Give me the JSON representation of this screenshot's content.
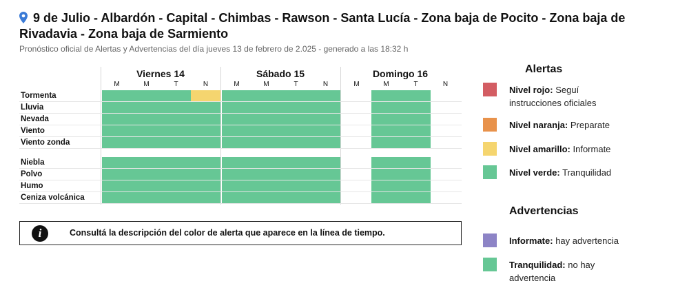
{
  "header": {
    "title": "9 de Julio - Albardón - Capital - Chimbas - Rawson - Santa Lucía - Zona baja de Pocito - Zona baja de Rivadavia - Zona baja de Sarmiento",
    "subtitle": "Pronóstico oficial de Alertas y Advertencias del día jueves 13 de febrero de 2.025 - generado a las 18:32 h"
  },
  "colors": {
    "green": "#66c795",
    "yellow": "#f5d56f",
    "red": "#d35d63",
    "orange": "#e8924b",
    "purple": "#8d84c6"
  },
  "days": [
    {
      "label": "Viernes 14",
      "slots": [
        "M",
        "M",
        "T",
        "N"
      ]
    },
    {
      "label": "Sábado 15",
      "slots": [
        "M",
        "M",
        "T",
        "N"
      ]
    },
    {
      "label": "Domingo 16",
      "slots": [
        "M",
        "M",
        "T",
        "N"
      ]
    }
  ],
  "rows": [
    {
      "label": "Tormenta",
      "cells": [
        "green",
        "green",
        "green",
        "yellow",
        "green",
        "green",
        "green",
        "green",
        "none",
        "green",
        "green",
        "none"
      ]
    },
    {
      "label": "Lluvia",
      "cells": [
        "green",
        "green",
        "green",
        "green",
        "green",
        "green",
        "green",
        "green",
        "none",
        "green",
        "green",
        "none"
      ]
    },
    {
      "label": "Nevada",
      "cells": [
        "green",
        "green",
        "green",
        "green",
        "green",
        "green",
        "green",
        "green",
        "none",
        "green",
        "green",
        "none"
      ]
    },
    {
      "label": "Viento",
      "cells": [
        "green",
        "green",
        "green",
        "green",
        "green",
        "green",
        "green",
        "green",
        "none",
        "green",
        "green",
        "none"
      ]
    },
    {
      "label": "Viento zonda",
      "cells": [
        "green",
        "green",
        "green",
        "green",
        "green",
        "green",
        "green",
        "green",
        "none",
        "green",
        "green",
        "none"
      ]
    },
    {
      "label": "Niebla",
      "cells": [
        "green",
        "green",
        "green",
        "green",
        "green",
        "green",
        "green",
        "green",
        "none",
        "green",
        "green",
        "none"
      ]
    },
    {
      "label": "Polvo",
      "cells": [
        "green",
        "green",
        "green",
        "green",
        "green",
        "green",
        "green",
        "green",
        "none",
        "green",
        "green",
        "none"
      ]
    },
    {
      "label": "Humo",
      "cells": [
        "green",
        "green",
        "green",
        "green",
        "green",
        "green",
        "green",
        "green",
        "none",
        "green",
        "green",
        "none"
      ]
    },
    {
      "label": "Ceniza volcánica",
      "cells": [
        "green",
        "green",
        "green",
        "green",
        "green",
        "green",
        "green",
        "green",
        "none",
        "green",
        "green",
        "none"
      ]
    }
  ],
  "info": {
    "icon": "info-icon",
    "text": "Consultá la descripción del color de alerta que aparece en la línea de tiempo."
  },
  "legend": {
    "alerts_title": "Alertas",
    "alerts": [
      {
        "color": "red",
        "label": "Nivel rojo:",
        "desc": "Seguí instrucciones oficiales"
      },
      {
        "color": "orange",
        "label": "Nivel naranja:",
        "desc": "Preparate"
      },
      {
        "color": "yellow",
        "label": "Nivel amarillo:",
        "desc": "Informate"
      },
      {
        "color": "green",
        "label": "Nivel verde:",
        "desc": "Tranquilidad"
      }
    ],
    "warnings_title": "Advertencias",
    "warnings": [
      {
        "color": "purple",
        "label": "Informate:",
        "desc": "hay advertencia"
      },
      {
        "color": "green",
        "label": "Tranquilidad:",
        "desc": "no hay advertencia"
      }
    ]
  }
}
